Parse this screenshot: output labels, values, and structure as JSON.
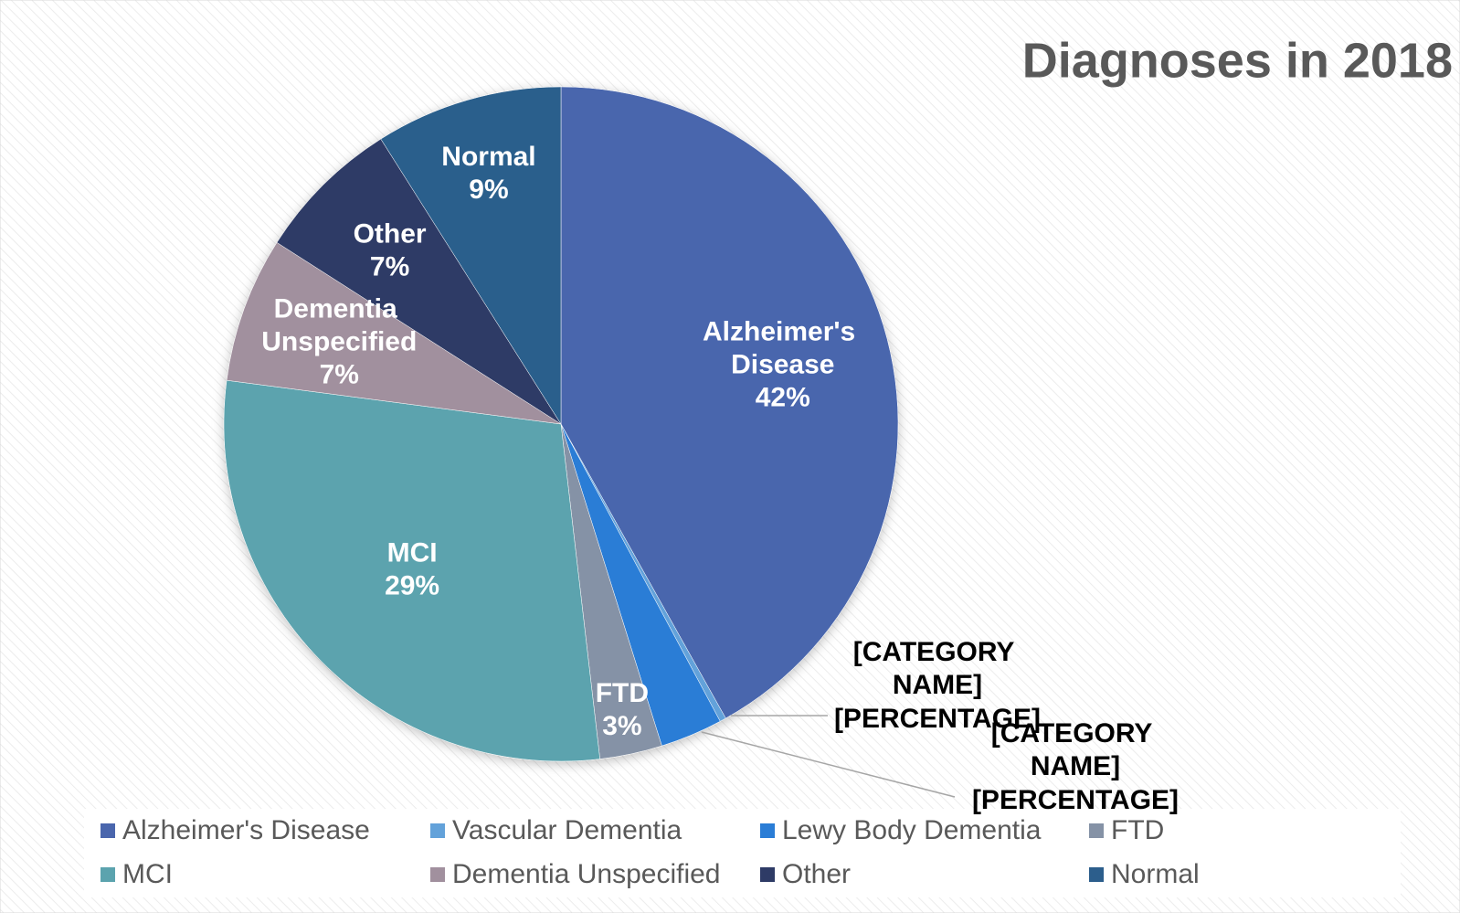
{
  "chart_data": {
    "type": "pie",
    "title": "Diagnoses in 2018",
    "categories": [
      "Alzheimer's Disease",
      "Vascular Dementia",
      "Lewy Body Dementia",
      "FTD",
      "MCI",
      "Dementia Unspecified",
      "Other",
      "Normal"
    ],
    "values": [
      42,
      0.3,
      3,
      3,
      29,
      7,
      7,
      9
    ],
    "value_labels": [
      "42%",
      "[PERCENTAGE]",
      "[PERCENTAGE]",
      "3%",
      "29%",
      "7%",
      "7%",
      "9%"
    ],
    "label_names": [
      "Alzheimer's Disease",
      "[CATEGORY NAME]",
      "[CATEGORY NAME]",
      "FTD",
      "MCI",
      "Dementia Unspecified",
      "Other",
      "Normal"
    ],
    "colors": [
      "#4a66ad",
      "#63a2da",
      "#2a7dd6",
      "#8592a6",
      "#5ba3ae",
      "#a1909e",
      "#2e3b66",
      "#2c5e8c"
    ],
    "legend": "bottom"
  }
}
